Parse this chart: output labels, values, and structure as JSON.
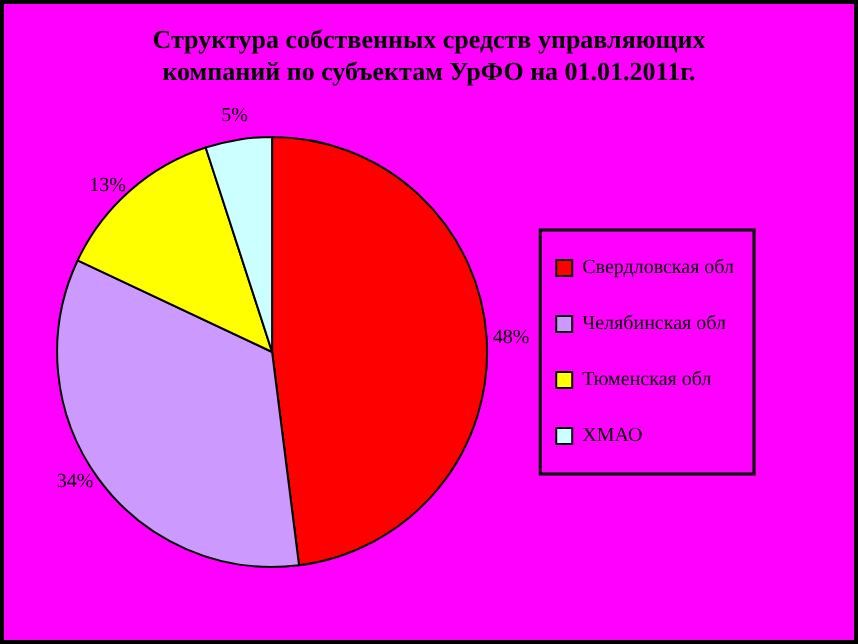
{
  "chart_data": {
    "type": "pie",
    "title": "Структура собственных средств управляющих компаний по субъектам УрФО на 01.01.2011г.",
    "categories": [
      "Свердловская обл",
      "Челябинская обл",
      "Тюменская обл",
      "ХМАО"
    ],
    "values": [
      48,
      34,
      13,
      5
    ],
    "colors": [
      "#ff0000",
      "#cc99ff",
      "#ffff00",
      "#ccffff"
    ],
    "value_labels": [
      "48%",
      "34%",
      "13%",
      "5%"
    ],
    "legend": "right"
  }
}
